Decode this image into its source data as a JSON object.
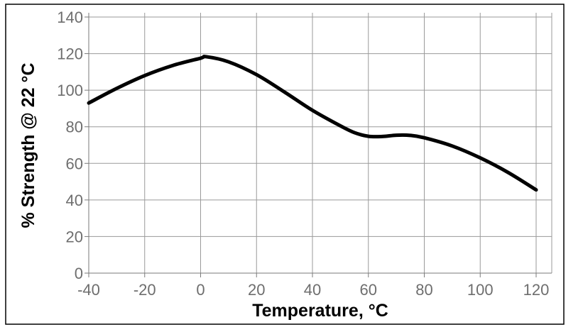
{
  "chart_data": {
    "type": "line",
    "title": "",
    "xlabel": "Temperature, °C",
    "ylabel": "% Strength @ 22 °C",
    "xlim": [
      -40,
      120
    ],
    "ylim": [
      0,
      140
    ],
    "x_ticks": [
      "-40",
      "-20",
      "0",
      "20",
      "40",
      "60",
      "80",
      "100",
      "120"
    ],
    "y_ticks": [
      "0",
      "20",
      "40",
      "60",
      "80",
      "100",
      "120",
      "140"
    ],
    "grid": true,
    "legend": "none",
    "series": [
      {
        "color": "#000000",
        "x": [
          -40,
          -30,
          -20,
          -10,
          0,
          2,
          10,
          20,
          30,
          40,
          50,
          55,
          60,
          65,
          70,
          75,
          80,
          90,
          100,
          110,
          120
        ],
        "y": [
          93,
          101,
          108,
          113.5,
          117.5,
          118.3,
          115.5,
          108.5,
          99,
          89,
          80.5,
          76.8,
          74.8,
          74.7,
          75.4,
          75.3,
          74,
          69.5,
          63,
          55,
          45.5
        ]
      }
    ]
  }
}
